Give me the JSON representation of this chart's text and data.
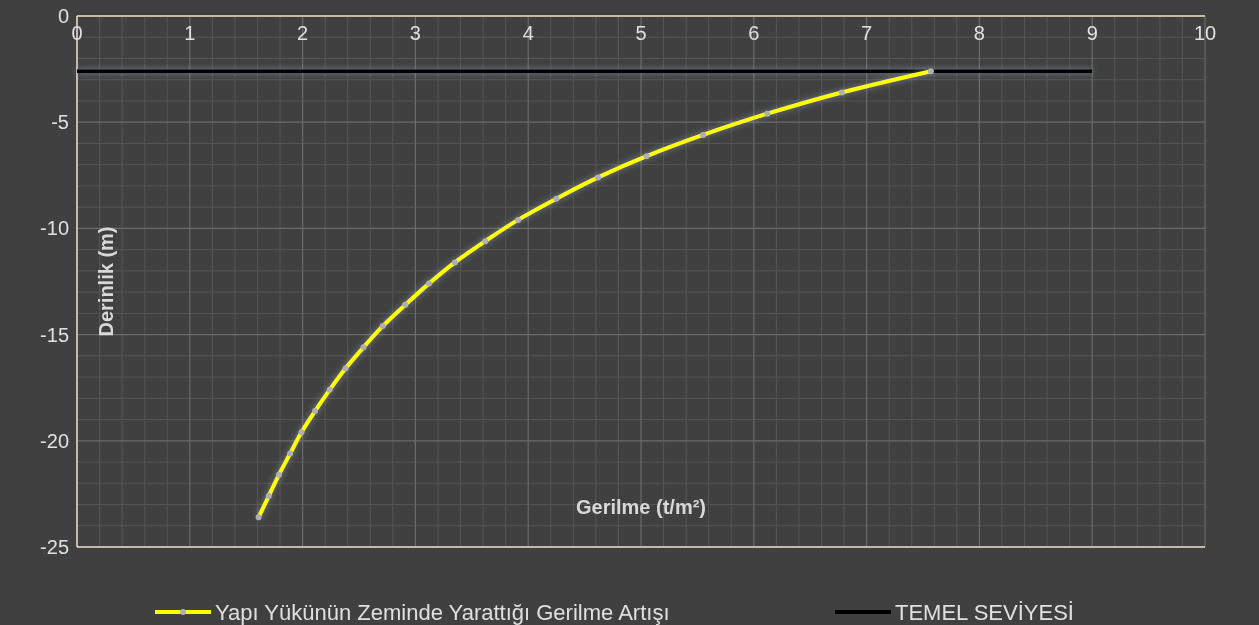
{
  "chart_data": {
    "type": "line",
    "xlabel": "Gerilme (t/m²)",
    "ylabel": "Derinlik (m)",
    "xlim": [
      0,
      10
    ],
    "xticks": [
      0,
      1,
      2,
      3,
      4,
      5,
      6,
      7,
      8,
      9,
      10
    ],
    "ylim": [
      -25,
      0
    ],
    "yticks": [
      -25,
      -20,
      -15,
      -10,
      -5,
      0
    ],
    "grid": true,
    "legend": "bottom",
    "series": [
      {
        "name": "Yapı Yükünün Zeminde Yarattığı Gerilme Artışı",
        "color": "#ffff00",
        "marker": "circle",
        "x": [
          7.57,
          6.78,
          6.12,
          5.55,
          5.05,
          4.62,
          4.25,
          3.91,
          3.62,
          3.35,
          3.12,
          2.91,
          2.71,
          2.54,
          2.38,
          2.24,
          2.11,
          1.99,
          1.89,
          1.79,
          1.7,
          1.61
        ],
        "values": [
          -2.6,
          -3.6,
          -4.6,
          -5.6,
          -6.6,
          -7.6,
          -8.6,
          -9.6,
          -10.6,
          -11.6,
          -12.6,
          -13.6,
          -14.6,
          -15.6,
          -16.6,
          -17.6,
          -18.6,
          -19.6,
          -20.6,
          -21.6,
          -22.6,
          -23.6
        ]
      },
      {
        "name": "TEMEL SEVİYESİ",
        "color": "#000000",
        "marker": "none",
        "x": [
          0,
          9
        ],
        "values": [
          -2.6,
          -2.6
        ]
      }
    ]
  }
}
